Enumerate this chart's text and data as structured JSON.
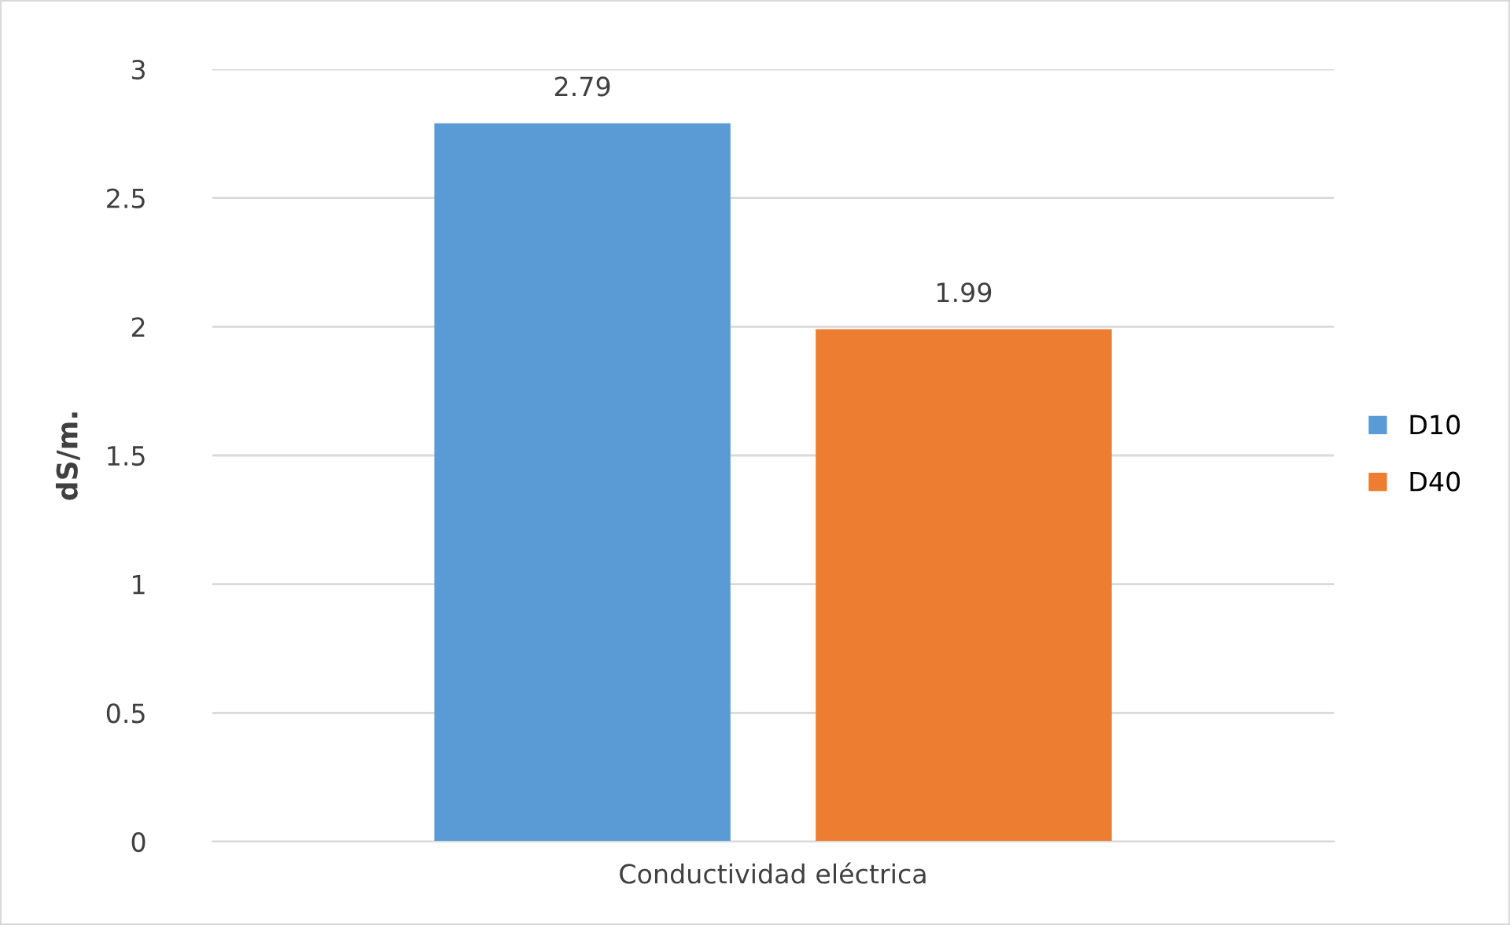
{
  "chart_data": {
    "type": "bar",
    "ylabel": "dS/m.",
    "categories": [
      "Conductividad eléctrica"
    ],
    "series": [
      {
        "name": "D10",
        "color": "#5b9bd5",
        "values": [
          2.79
        ]
      },
      {
        "name": "D40",
        "color": "#ed7d31",
        "values": [
          1.99
        ]
      }
    ],
    "ylim": [
      0,
      3
    ],
    "yticks": [
      0,
      0.5,
      1,
      1.5,
      2,
      2.5,
      3
    ],
    "grid": "y",
    "legend": "right",
    "data_labels": true
  }
}
